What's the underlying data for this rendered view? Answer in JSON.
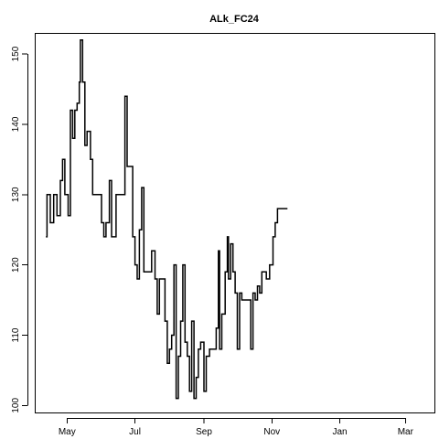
{
  "chart_data": {
    "type": "line",
    "step": true,
    "title": "ALk_FC24",
    "xlabel": "",
    "ylabel": "",
    "x_ticks": [
      {
        "label": "May",
        "date": "2001-05-01"
      },
      {
        "label": "Jul",
        "date": "2001-07-01"
      },
      {
        "label": "Sep",
        "date": "2001-09-01"
      },
      {
        "label": "Nov",
        "date": "2001-11-01"
      },
      {
        "label": "Jan",
        "date": "2002-01-01"
      },
      {
        "label": "Mar",
        "date": "2002-03-01"
      }
    ],
    "y_ticks": [
      100,
      110,
      120,
      130,
      140,
      150
    ],
    "xlim": [
      "2001-04-02",
      "2002-03-27"
    ],
    "ylim": [
      99,
      153
    ],
    "grid": false,
    "points": [
      [
        "2001-04-12",
        124
      ],
      [
        "2001-04-13",
        130
      ],
      [
        "2001-04-16",
        126
      ],
      [
        "2001-04-19",
        130
      ],
      [
        "2001-04-22",
        127
      ],
      [
        "2001-04-25",
        132
      ],
      [
        "2001-04-27",
        135
      ],
      [
        "2001-04-29",
        130
      ],
      [
        "2001-05-02",
        127
      ],
      [
        "2001-05-04",
        142
      ],
      [
        "2001-05-06",
        138
      ],
      [
        "2001-05-08",
        142
      ],
      [
        "2001-05-10",
        143
      ],
      [
        "2001-05-12",
        146
      ],
      [
        "2001-05-13",
        152
      ],
      [
        "2001-05-15",
        146
      ],
      [
        "2001-05-17",
        137
      ],
      [
        "2001-05-19",
        139
      ],
      [
        "2001-05-22",
        135
      ],
      [
        "2001-05-24",
        130
      ],
      [
        "2001-06-01",
        126
      ],
      [
        "2001-06-03",
        124
      ],
      [
        "2001-06-05",
        126
      ],
      [
        "2001-06-08",
        132
      ],
      [
        "2001-06-10",
        124
      ],
      [
        "2001-06-14",
        130
      ],
      [
        "2001-06-18",
        130
      ],
      [
        "2001-06-22",
        144
      ],
      [
        "2001-06-24",
        134
      ],
      [
        "2001-06-27",
        134
      ],
      [
        "2001-06-29",
        124
      ],
      [
        "2001-07-01",
        120
      ],
      [
        "2001-07-03",
        118
      ],
      [
        "2001-07-05",
        125
      ],
      [
        "2001-07-07",
        131
      ],
      [
        "2001-07-09",
        119
      ],
      [
        "2001-07-13",
        119
      ],
      [
        "2001-07-16",
        122
      ],
      [
        "2001-07-19",
        118
      ],
      [
        "2001-07-21",
        113
      ],
      [
        "2001-07-23",
        118
      ],
      [
        "2001-07-26",
        118
      ],
      [
        "2001-07-28",
        112
      ],
      [
        "2001-07-30",
        106
      ],
      [
        "2001-08-01",
        108
      ],
      [
        "2001-08-03",
        110
      ],
      [
        "2001-08-05",
        120
      ],
      [
        "2001-08-07",
        101
      ],
      [
        "2001-08-09",
        107
      ],
      [
        "2001-08-11",
        112
      ],
      [
        "2001-08-13",
        120
      ],
      [
        "2001-08-15",
        109
      ],
      [
        "2001-08-17",
        107
      ],
      [
        "2001-08-19",
        102
      ],
      [
        "2001-08-21",
        112
      ],
      [
        "2001-08-23",
        101
      ],
      [
        "2001-08-25",
        104
      ],
      [
        "2001-08-27",
        108
      ],
      [
        "2001-08-29",
        109
      ],
      [
        "2001-09-01",
        102
      ],
      [
        "2001-09-03",
        107
      ],
      [
        "2001-09-06",
        108
      ],
      [
        "2001-09-09",
        108
      ],
      [
        "2001-09-12",
        111
      ],
      [
        "2001-09-14",
        122
      ],
      [
        "2001-09-15",
        108
      ],
      [
        "2001-09-17",
        113
      ],
      [
        "2001-09-20",
        119
      ],
      [
        "2001-09-22",
        124
      ],
      [
        "2001-09-23",
        118
      ],
      [
        "2001-09-25",
        123
      ],
      [
        "2001-09-27",
        119
      ],
      [
        "2001-09-29",
        116
      ],
      [
        "2001-10-01",
        108
      ],
      [
        "2001-10-03",
        116
      ],
      [
        "2001-10-05",
        115
      ],
      [
        "2001-10-09",
        115
      ],
      [
        "2001-10-13",
        108
      ],
      [
        "2001-10-15",
        116
      ],
      [
        "2001-10-17",
        115
      ],
      [
        "2001-10-19",
        117
      ],
      [
        "2001-10-21",
        116
      ],
      [
        "2001-10-23",
        119
      ],
      [
        "2001-10-27",
        118
      ],
      [
        "2001-10-30",
        120
      ],
      [
        "2001-11-02",
        124
      ],
      [
        "2001-11-04",
        126
      ],
      [
        "2001-11-06",
        128
      ],
      [
        "2001-11-15",
        128
      ]
    ]
  }
}
